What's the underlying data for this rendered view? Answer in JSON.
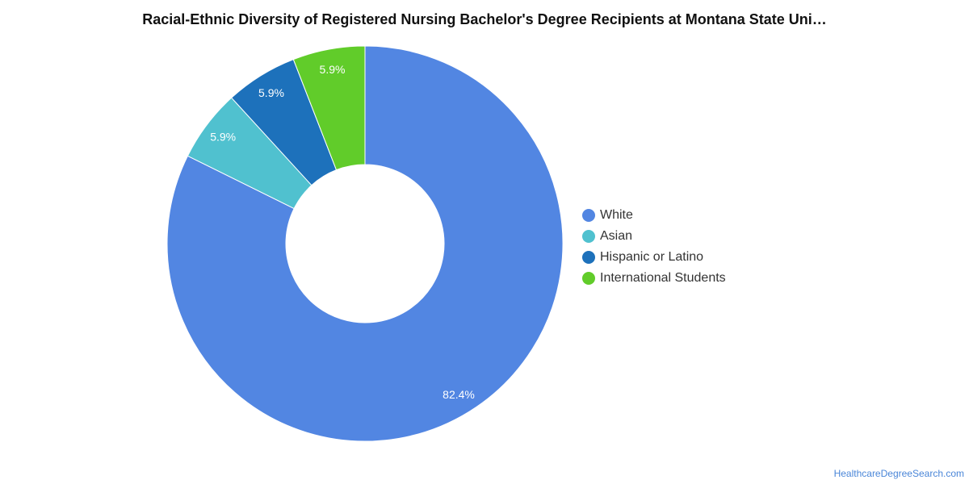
{
  "chart_data": {
    "type": "pie",
    "donut": true,
    "title": "Racial-Ethnic Diversity of Registered Nursing Bachelor's Degree Recipients at Montana State Uni…",
    "slices": [
      {
        "name": "White",
        "value": 82.4,
        "label": "82.4%",
        "color": "#5286e2"
      },
      {
        "name": "Asian",
        "value": 5.9,
        "label": "5.9%",
        "color": "#50c1cf"
      },
      {
        "name": "Hispanic or Latino",
        "value": 5.9,
        "label": "5.9%",
        "color": "#1d71bb"
      },
      {
        "name": "International Students",
        "value": 5.9,
        "label": "5.9%",
        "color": "#61cc2a"
      }
    ],
    "legend_position": "right"
  },
  "footer": {
    "source": "HealthcareDegreeSearch.com"
  }
}
